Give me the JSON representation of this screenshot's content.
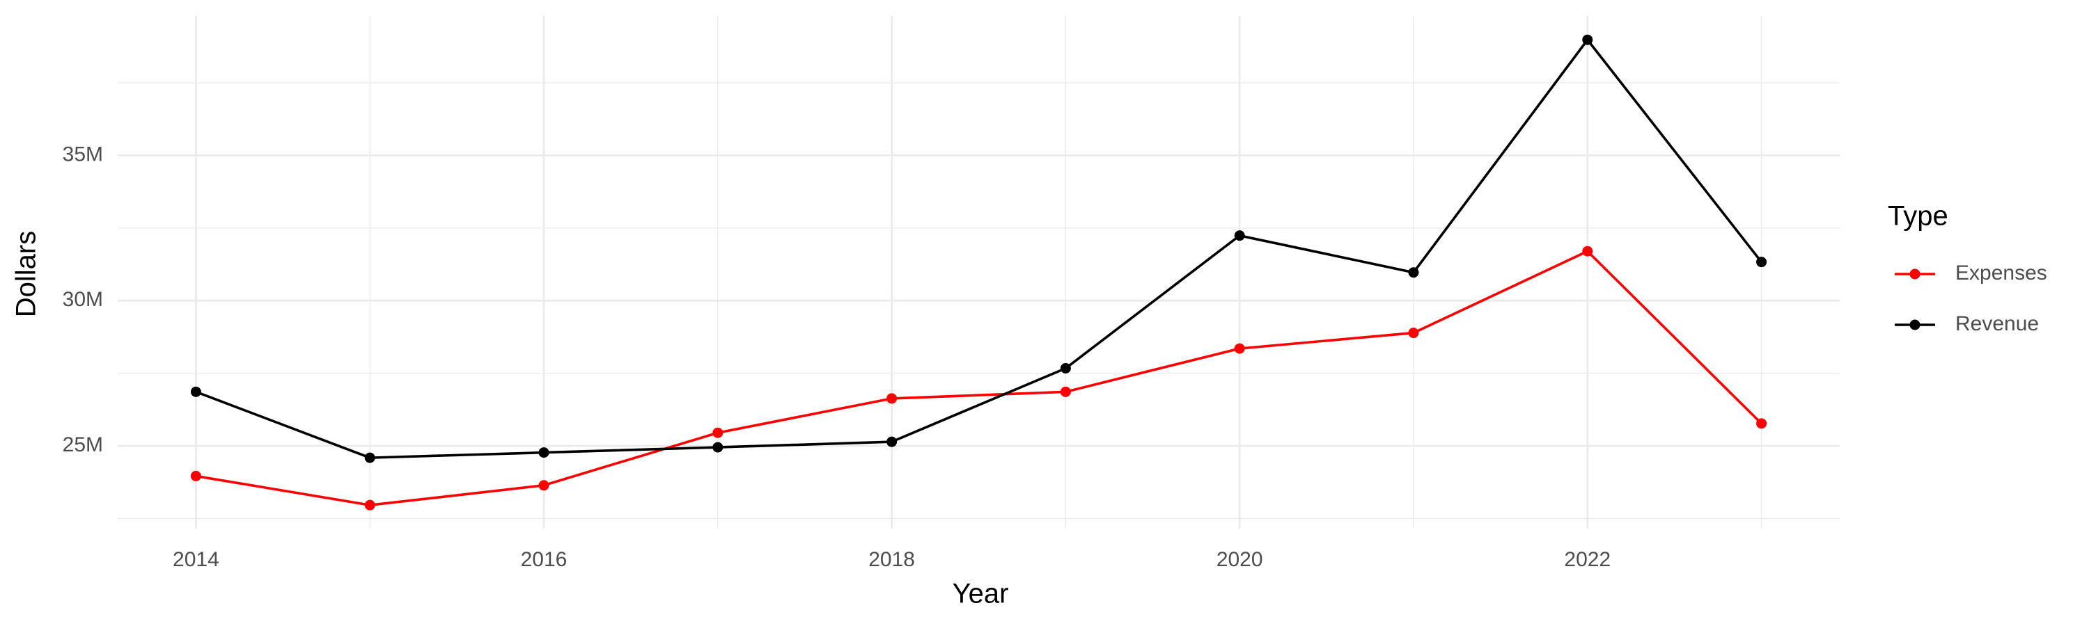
{
  "chart_data": {
    "type": "line",
    "x_title": "Year",
    "y_title": "Dollars",
    "legend_title": "Type",
    "x": [
      2014,
      2015,
      2016,
      2017,
      2018,
      2019,
      2020,
      2021,
      2022,
      2023
    ],
    "series": [
      {
        "name": "Expenses",
        "color": "#ff0000",
        "values": [
          23960000,
          22960000,
          23640000,
          25450000,
          26630000,
          26860000,
          28350000,
          28890000,
          31700000,
          25770000
        ]
      },
      {
        "name": "Revenue",
        "color": "#000000",
        "values": [
          26860000,
          24590000,
          24770000,
          24950000,
          25140000,
          27670000,
          32240000,
          30970000,
          38980000,
          31330000
        ]
      }
    ],
    "xlim": [
      2013.55,
      2023.45
    ],
    "xticks": [
      2014,
      2016,
      2018,
      2020,
      2022
    ],
    "xminor": [
      2015,
      2017,
      2019,
      2021,
      2023
    ],
    "ylim": [
      22150000,
      39800000
    ],
    "yticks": [
      {
        "value": 25000000,
        "label": "25M"
      },
      {
        "value": 30000000,
        "label": "30M"
      },
      {
        "value": 35000000,
        "label": "35M"
      }
    ],
    "yminor": [
      22500000,
      27500000,
      32500000,
      37500000
    ],
    "grid": true,
    "legend": "right"
  }
}
